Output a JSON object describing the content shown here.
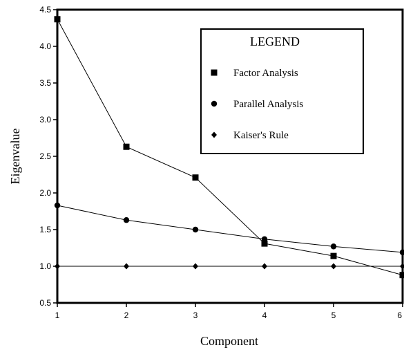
{
  "chart_data": {
    "type": "line",
    "title": "",
    "xlabel": "Component",
    "ylabel": "Eigenvalue",
    "x": [
      1,
      2,
      3,
      4,
      5,
      6
    ],
    "xlim": [
      1,
      6
    ],
    "ylim": [
      0.5,
      4.5
    ],
    "x_ticks": [
      "1",
      "2",
      "3",
      "4",
      "5",
      "6"
    ],
    "y_ticks": [
      "0.5",
      "1.0",
      "1.5",
      "2.0",
      "2.5",
      "3.0",
      "3.5",
      "4.0",
      "4.5"
    ],
    "grid": false,
    "legend": {
      "title": "LEGEND",
      "placement": "top-right"
    },
    "series": [
      {
        "name": "Factor Analysis",
        "marker": "square",
        "values": [
          4.37,
          2.63,
          2.21,
          1.31,
          1.14,
          0.88
        ]
      },
      {
        "name": "Parallel Analysis",
        "marker": "circle",
        "values": [
          1.83,
          1.63,
          1.5,
          1.37,
          1.27,
          1.19
        ]
      },
      {
        "name": "Kaiser's Rule",
        "marker": "diamond",
        "values": [
          1.0,
          1.0,
          1.0,
          1.0,
          1.0,
          1.0
        ]
      }
    ],
    "colors": {
      "line": "#000000",
      "background": "#ffffff"
    }
  }
}
